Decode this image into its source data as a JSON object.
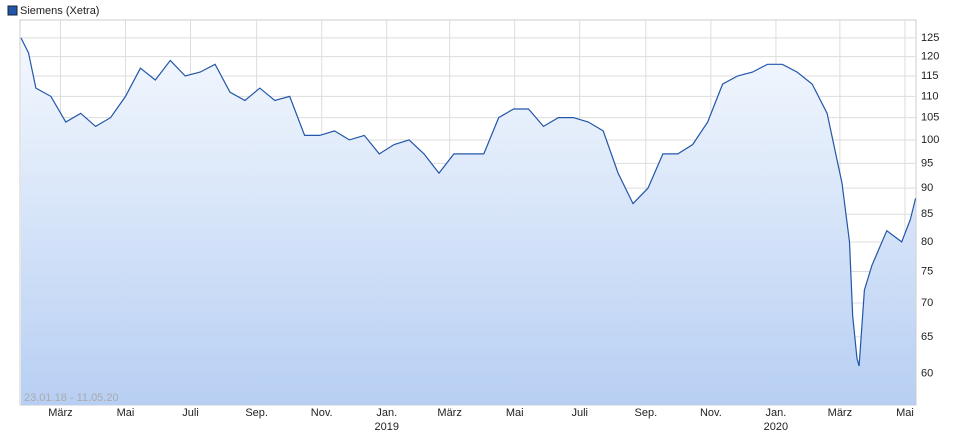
{
  "chart_data": {
    "type": "line",
    "title": "Siemens (Xetra)",
    "annotation": "23.01.18 - 11.05.20",
    "x": [
      "2018-01-23",
      "2018-01-30",
      "2018-02-06",
      "2018-02-20",
      "2018-03-06",
      "2018-03-20",
      "2018-04-03",
      "2018-04-17",
      "2018-05-01",
      "2018-05-15",
      "2018-05-29",
      "2018-06-12",
      "2018-06-26",
      "2018-07-10",
      "2018-07-24",
      "2018-08-07",
      "2018-08-21",
      "2018-09-04",
      "2018-09-18",
      "2018-10-02",
      "2018-10-16",
      "2018-10-30",
      "2018-11-13",
      "2018-11-27",
      "2018-12-11",
      "2018-12-25",
      "2019-01-08",
      "2019-01-22",
      "2019-02-05",
      "2019-02-19",
      "2019-03-05",
      "2019-03-19",
      "2019-04-02",
      "2019-04-16",
      "2019-04-30",
      "2019-05-14",
      "2019-05-28",
      "2019-06-11",
      "2019-06-25",
      "2019-07-09",
      "2019-07-23",
      "2019-08-06",
      "2019-08-20",
      "2019-09-03",
      "2019-09-17",
      "2019-10-01",
      "2019-10-15",
      "2019-10-29",
      "2019-11-12",
      "2019-11-26",
      "2019-12-10",
      "2019-12-24",
      "2020-01-07",
      "2020-01-21",
      "2020-02-04",
      "2020-02-18",
      "2020-03-03",
      "2020-03-10",
      "2020-03-13",
      "2020-03-17",
      "2020-03-19",
      "2020-03-24",
      "2020-03-31",
      "2020-04-14",
      "2020-04-28",
      "2020-05-06",
      "2020-05-11"
    ],
    "series": [
      {
        "name": "Siemens (Xetra)",
        "color": "#2356a8",
        "values": [
          125,
          121,
          112,
          110,
          104,
          106,
          103,
          105,
          110,
          117,
          114,
          119,
          115,
          116,
          118,
          111,
          109,
          112,
          109,
          110,
          101,
          101,
          102,
          100,
          101,
          97,
          99,
          100,
          97,
          93,
          97,
          97,
          97,
          105,
          107,
          107,
          103,
          105,
          105,
          104,
          102,
          93,
          87,
          90,
          97,
          97,
          99,
          104,
          113,
          115,
          116,
          118,
          118,
          116,
          113,
          106,
          91,
          80,
          68,
          62,
          61,
          72,
          76,
          82,
          80,
          84,
          88
        ]
      }
    ],
    "xlim": [
      "2018-01-23",
      "2020-05-11"
    ],
    "xticks": [
      {
        "value": "2018-03-01",
        "label": "März"
      },
      {
        "value": "2018-05-01",
        "label": "Mai"
      },
      {
        "value": "2018-07-01",
        "label": "Juli"
      },
      {
        "value": "2018-09-01",
        "label": "Sep."
      },
      {
        "value": "2018-11-01",
        "label": "Nov."
      },
      {
        "value": "2019-01-01",
        "label": "Jan."
      },
      {
        "value": "2019-03-01",
        "label": "März"
      },
      {
        "value": "2019-05-01",
        "label": "Mai"
      },
      {
        "value": "2019-07-01",
        "label": "Juli"
      },
      {
        "value": "2019-09-01",
        "label": "Sep."
      },
      {
        "value": "2019-11-01",
        "label": "Nov."
      },
      {
        "value": "2020-01-01",
        "label": "Jan."
      },
      {
        "value": "2020-03-01",
        "label": "März"
      },
      {
        "value": "2020-05-01",
        "label": "Mai"
      }
    ],
    "year_labels": [
      {
        "value": "2019-01-01",
        "label": "2019"
      },
      {
        "value": "2020-01-01",
        "label": "2020"
      }
    ],
    "ylim": [
      56,
      130
    ],
    "yticks": [
      60,
      65,
      70,
      75,
      80,
      85,
      90,
      95,
      100,
      105,
      110,
      115,
      120,
      125
    ],
    "log_scale": true,
    "grid": true
  }
}
